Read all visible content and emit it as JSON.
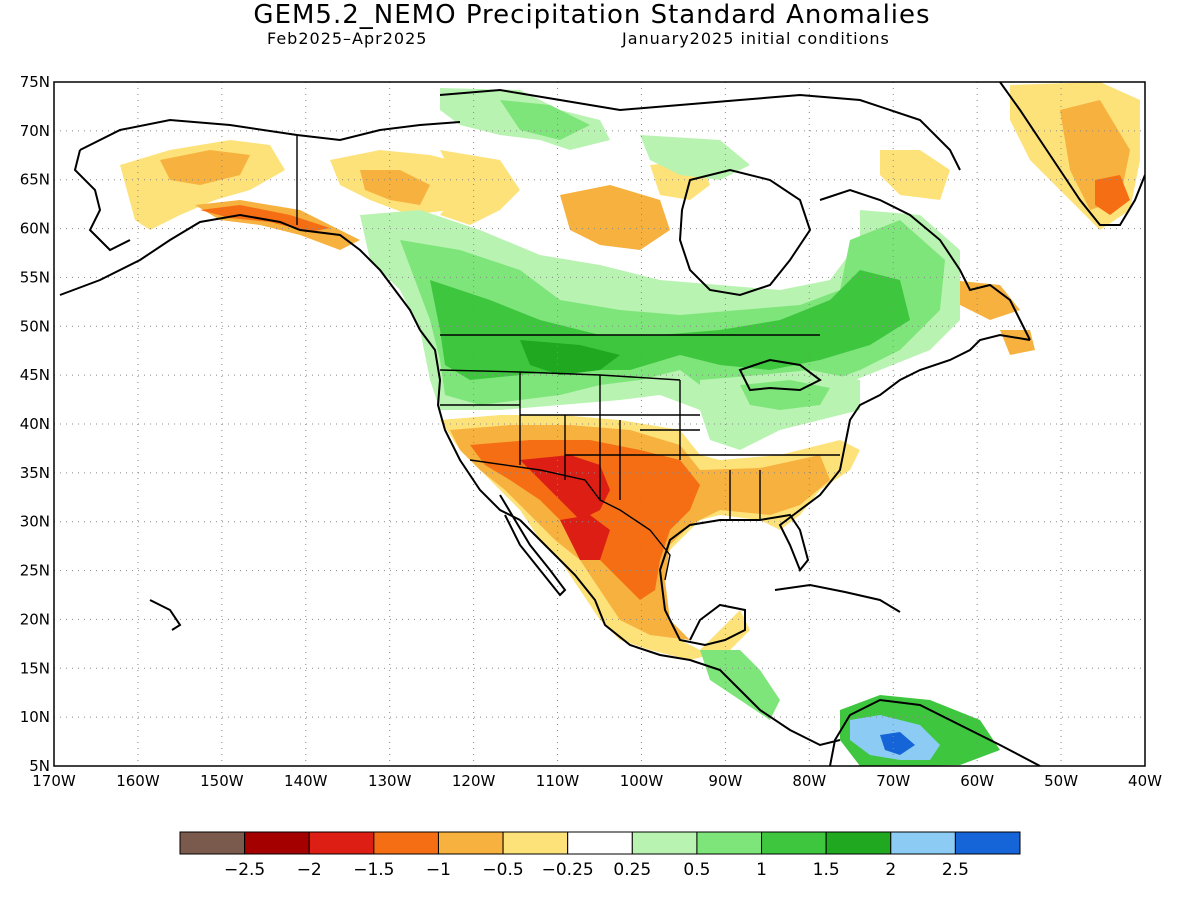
{
  "header": {
    "title": "GEM5.2_NEMO Precipitation Standard Anomalies",
    "period": "Feb2025–Apr2025",
    "init": "January2025 initial conditions"
  },
  "map": {
    "lat_labels": [
      "75N",
      "70N",
      "65N",
      "60N",
      "55N",
      "50N",
      "45N",
      "40N",
      "35N",
      "30N",
      "25N",
      "20N",
      "15N",
      "10N",
      "5N"
    ],
    "lon_labels": [
      "170W",
      "160W",
      "150W",
      "140W",
      "130W",
      "120W",
      "110W",
      "100W",
      "90W",
      "80W",
      "70W",
      "60W",
      "50W",
      "40W"
    ],
    "lat_range": [
      5,
      75
    ],
    "lon_range": [
      -170,
      -40
    ],
    "grid": "dotted"
  },
  "colorbar": {
    "colors": [
      "#7b5a4e",
      "#a50000",
      "#dc1e14",
      "#f56e14",
      "#f7b13e",
      "#fde27a",
      "#ffffff",
      "#b9f3b1",
      "#7ee57a",
      "#3fc63f",
      "#20a820",
      "#8ccbf3",
      "#1665d8"
    ],
    "labels": [
      "−2.5",
      "−2",
      "−1.5",
      "−1",
      "−0.5",
      "−0.25",
      "0.25",
      "0.5",
      "1",
      "1.5",
      "2",
      "2.5"
    ]
  },
  "anomaly_colors": {
    "dark_brown": "#7b5a4e",
    "dark_red": "#a50000",
    "red": "#dc1e14",
    "orange": "#f56e14",
    "light_orange": "#f7b13e",
    "yellow": "#fde27a",
    "light_green": "#b9f3b1",
    "green": "#7ee57a",
    "mid_green": "#3fc63f",
    "dark_green": "#20a820",
    "light_blue": "#8ccbf3",
    "blue": "#1665d8"
  }
}
